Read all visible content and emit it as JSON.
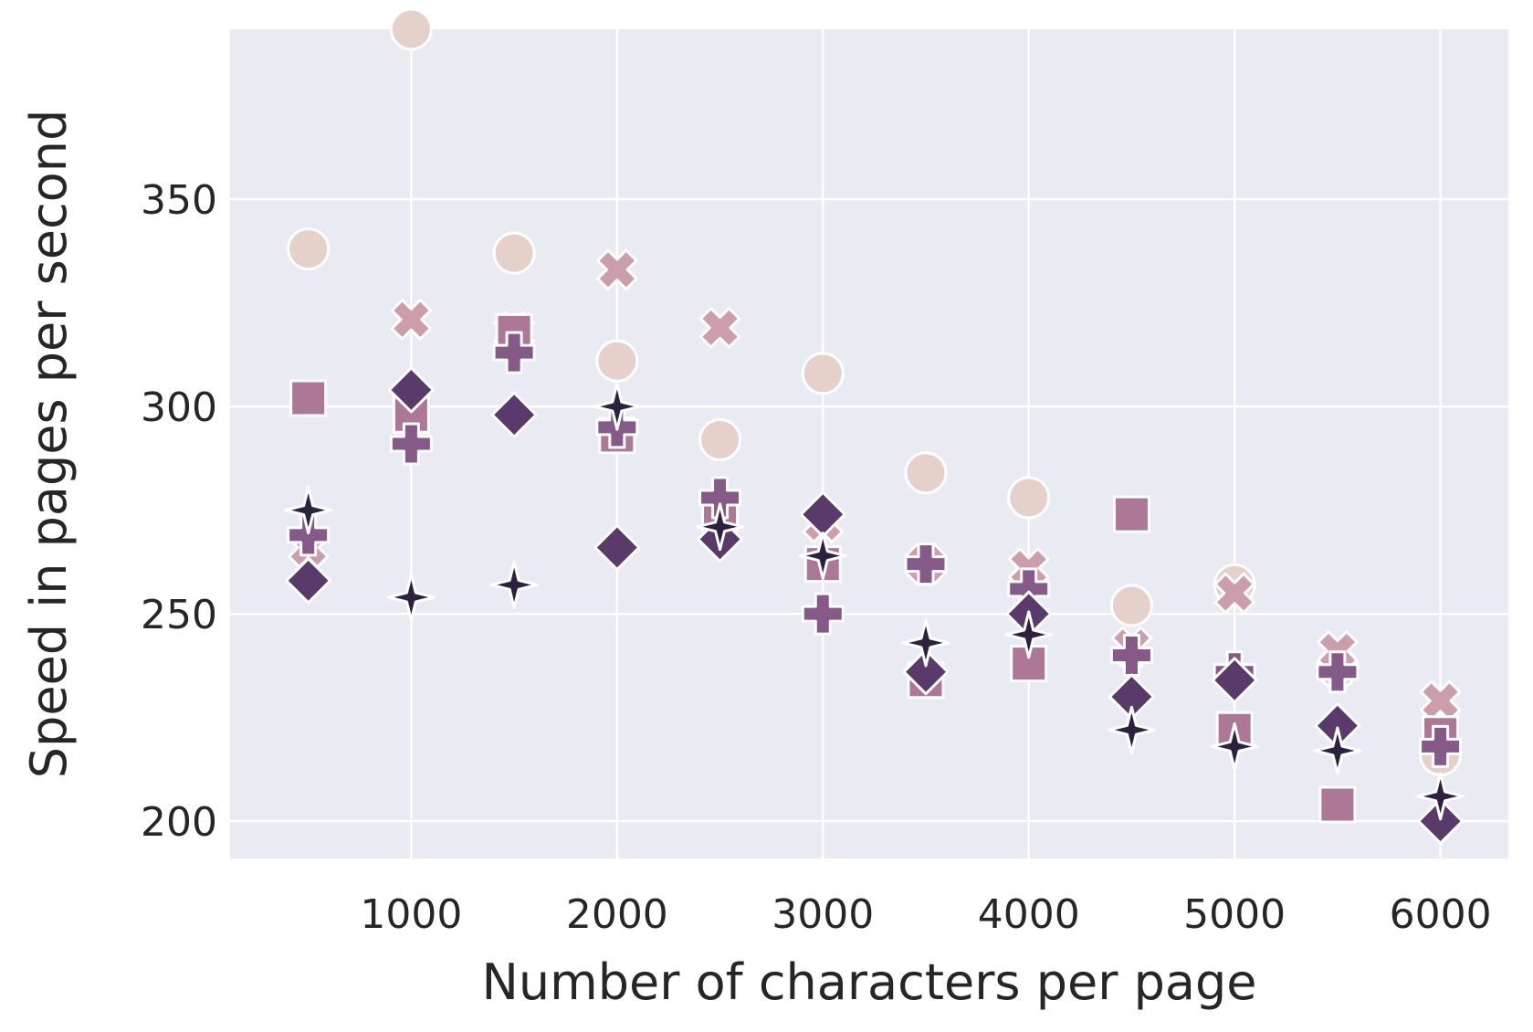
{
  "chart_data": {
    "type": "scatter",
    "title": "",
    "xlabel": "Number of characters per page",
    "ylabel": "Speed in pages per second",
    "xlim": [
      120,
      6330
    ],
    "ylim": [
      191,
      391
    ],
    "xticks": [
      1000,
      2000,
      3000,
      4000,
      5000,
      6000
    ],
    "yticks": [
      200,
      250,
      300,
      350
    ],
    "grid": true,
    "legend": "none",
    "colors": {
      "background": "#eaeaf2",
      "grid": "#ffffff",
      "marker_edge": "#ffffff",
      "circle": "#e6d0ca",
      "x": "#cc9eab",
      "square": "#ad7896",
      "plus": "#865a88",
      "diamond": "#5a3a6b",
      "star": "#2c213f"
    },
    "series": [
      {
        "marker": "circle",
        "color": "#e6d0ca",
        "x": [
          500,
          1000,
          1500,
          2000,
          2500,
          3000,
          3500,
          4000,
          4500,
          5000,
          5500,
          6000
        ],
        "y": [
          338,
          391,
          337,
          311,
          292,
          308,
          284,
          278,
          252,
          257,
          237,
          216
        ]
      },
      {
        "marker": "x",
        "color": "#cc9eab",
        "x": [
          500,
          1000,
          1500,
          2000,
          2500,
          3000,
          3500,
          4000,
          4500,
          5000,
          5500,
          6000
        ],
        "y": [
          266,
          321,
          318,
          333,
          319,
          272,
          262,
          261,
          242,
          255,
          241,
          229
        ]
      },
      {
        "marker": "square",
        "color": "#ad7896",
        "x": [
          500,
          1000,
          1500,
          2000,
          2500,
          3000,
          3500,
          4000,
          4500,
          5000,
          5500,
          6000
        ],
        "y": [
          302,
          298,
          318,
          293,
          274,
          262,
          234,
          238,
          274,
          222,
          204,
          221
        ]
      },
      {
        "marker": "plus",
        "color": "#865a88",
        "x": [
          500,
          1000,
          1500,
          2000,
          2500,
          3000,
          3500,
          4000,
          4500,
          5000,
          5500,
          6000
        ],
        "y": [
          269,
          291,
          313,
          295,
          278,
          250,
          262,
          256,
          240,
          236,
          236,
          218
        ]
      },
      {
        "marker": "diamond",
        "color": "#5a3a6b",
        "x": [
          500,
          1000,
          1500,
          2000,
          2500,
          3000,
          3500,
          4000,
          4500,
          5000,
          5500,
          6000
        ],
        "y": [
          258,
          304,
          298,
          266,
          268,
          274,
          236,
          250,
          230,
          234,
          223,
          200
        ]
      },
      {
        "marker": "star",
        "color": "#2c213f",
        "x": [
          500,
          1000,
          1500,
          2000,
          2500,
          3000,
          3500,
          4000,
          4500,
          5000,
          5500,
          6000
        ],
        "y": [
          275,
          254,
          257,
          300,
          271,
          264,
          243,
          245,
          222,
          218,
          217,
          206
        ]
      }
    ]
  }
}
